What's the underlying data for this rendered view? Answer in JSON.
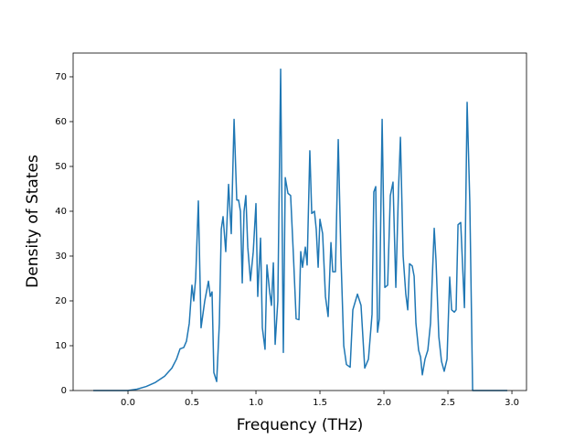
{
  "chart_data": {
    "type": "line",
    "xlabel": "Frequency (THz)",
    "ylabel": "Density of States",
    "color": "#1f77b4",
    "xlim": [
      -0.4286,
      3.114
    ],
    "ylim": [
      0,
      75.3
    ],
    "xticks": [
      {
        "value": 0,
        "label": "0.0"
      },
      {
        "value": 0.5,
        "label": "0.5"
      },
      {
        "value": 1,
        "label": "1.0"
      },
      {
        "value": 1.5,
        "label": "1.5"
      },
      {
        "value": 2,
        "label": "2.0"
      },
      {
        "value": 2.5,
        "label": "2.5"
      },
      {
        "value": 3,
        "label": "3.0"
      }
    ],
    "yticks": [
      0,
      10,
      20,
      30,
      40,
      50,
      60,
      70
    ],
    "x": [
      -0.271,
      0,
      0.071,
      0.143,
      0.214,
      0.286,
      0.343,
      0.379,
      0.407,
      0.436,
      0.457,
      0.479,
      0.5,
      0.514,
      0.529,
      0.55,
      0.571,
      0.6,
      0.629,
      0.643,
      0.657,
      0.671,
      0.693,
      0.714,
      0.729,
      0.743,
      0.764,
      0.786,
      0.807,
      0.829,
      0.85,
      0.864,
      0.879,
      0.893,
      0.907,
      0.921,
      0.936,
      0.957,
      0.979,
      1.0,
      1.014,
      1.036,
      1.05,
      1.071,
      1.086,
      1.107,
      1.121,
      1.136,
      1.15,
      1.171,
      1.193,
      1.214,
      1.229,
      1.25,
      1.271,
      1.293,
      1.314,
      1.336,
      1.35,
      1.364,
      1.386,
      1.4,
      1.421,
      1.436,
      1.457,
      1.471,
      1.486,
      1.5,
      1.521,
      1.543,
      1.564,
      1.586,
      1.6,
      1.621,
      1.643,
      1.664,
      1.686,
      1.707,
      1.736,
      1.757,
      1.793,
      1.821,
      1.85,
      1.879,
      1.907,
      1.921,
      1.936,
      1.95,
      1.964,
      1.986,
      2.007,
      2.029,
      2.05,
      2.071,
      2.093,
      2.114,
      2.129,
      2.15,
      2.171,
      2.186,
      2.2,
      2.221,
      2.236,
      2.25,
      2.271,
      2.286,
      2.3,
      2.321,
      2.343,
      2.364,
      2.393,
      2.407,
      2.429,
      2.45,
      2.471,
      2.493,
      2.514,
      2.529,
      2.55,
      2.564,
      2.579,
      2.6,
      2.629,
      2.65,
      2.671,
      2.693,
      2.714,
      2.964
    ],
    "values": [
      0,
      0,
      0.3,
      0.9,
      1.8,
      3.2,
      5,
      7,
      9.3,
      9.6,
      11,
      15,
      23.5,
      20,
      25,
      42.3,
      14,
      20,
      24.4,
      21,
      22,
      4,
      2,
      15,
      36,
      38.8,
      31,
      46,
      35,
      60.5,
      42.5,
      42.5,
      40,
      24,
      40,
      43.5,
      32,
      24.5,
      31,
      41.7,
      21,
      34,
      14,
      9.2,
      28,
      22,
      19,
      28.5,
      10.3,
      20,
      71.7,
      8.5,
      47.5,
      44,
      43.5,
      30,
      16,
      15.8,
      31,
      27.5,
      32,
      28,
      53.5,
      39.5,
      40,
      36,
      27.5,
      38.2,
      35,
      21,
      16.5,
      33,
      26.5,
      26.5,
      56,
      30,
      10,
      5.8,
      5.2,
      18,
      21.5,
      19,
      5,
      7,
      17,
      44.3,
      45.5,
      13,
      16,
      60.5,
      23,
      23.5,
      43.5,
      46.5,
      23,
      45,
      56.5,
      30,
      21.5,
      18,
      28.3,
      27.8,
      25.5,
      15,
      9,
      7.5,
      3.5,
      7,
      9,
      15,
      36.2,
      29,
      12,
      6.5,
      4.3,
      7,
      25.3,
      18,
      17.5,
      18,
      37,
      37.5,
      18.5,
      64.3,
      42,
      0,
      0,
      0
    ]
  }
}
